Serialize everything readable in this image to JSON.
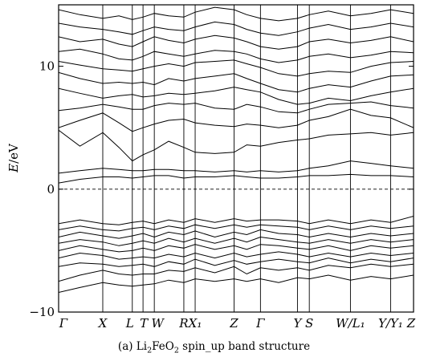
{
  "chart_data": {
    "type": "line",
    "ylabel": "E/eV",
    "ylim": [
      -10,
      15
    ],
    "yticks": [
      -10,
      0,
      10
    ],
    "fermi_level": 0,
    "kpoints": [
      {
        "label": "Γ",
        "x": 0.0
      },
      {
        "label": "X",
        "x": 0.1244
      },
      {
        "label": "L",
        "x": 0.2076
      },
      {
        "label": "T",
        "x": 0.2378
      },
      {
        "label": "W",
        "x": 0.2696
      },
      {
        "label": "R",
        "x": 0.3528
      },
      {
        "label": "X₁",
        "x": 0.3847
      },
      {
        "label": "Z",
        "x": 0.4944
      },
      {
        "label": "Γ",
        "x": 0.5687
      },
      {
        "label": "Y",
        "x": 0.6729
      },
      {
        "label": "S",
        "x": 0.7063
      },
      {
        "label": "W/L₁",
        "x": 0.8222
      },
      {
        "label": "Y/Y₁",
        "x": 0.9353
      },
      {
        "label": "Z",
        "x": 1.0
      }
    ],
    "path_labels": [
      "Γ",
      "X",
      "L",
      "T",
      "W",
      "R",
      "X₁",
      "Z",
      "Γ",
      "Y",
      "S",
      "W/L₁",
      "Y/Y₁",
      "Z"
    ],
    "bands": [
      {
        "x": [
          0,
          0.06,
          0.1244,
          0.17,
          0.2076,
          0.2378,
          0.2696,
          0.31,
          0.3528,
          0.3847,
          0.44,
          0.4944,
          0.53,
          0.5687,
          0.62,
          0.6729,
          0.7063,
          0.76,
          0.8222,
          0.88,
          0.9353,
          1.0
        ],
        "y": [
          -8.4,
          -8.0,
          -7.6,
          -7.8,
          -7.9,
          -7.8,
          -7.7,
          -7.4,
          -7.6,
          -7.3,
          -7.5,
          -7.3,
          -7.5,
          -7.3,
          -7.6,
          -7.2,
          -7.3,
          -7.0,
          -7.4,
          -7.1,
          -7.3,
          -7.0
        ]
      },
      {
        "x": [
          0,
          0.06,
          0.1244,
          0.17,
          0.2076,
          0.2378,
          0.2696,
          0.31,
          0.3528,
          0.3847,
          0.44,
          0.4944,
          0.53,
          0.5687,
          0.62,
          0.6729,
          0.7063,
          0.76,
          0.8222,
          0.88,
          0.9353,
          1.0
        ],
        "y": [
          -7.5,
          -7.0,
          -6.6,
          -6.9,
          -7.0,
          -6.9,
          -6.9,
          -6.6,
          -6.7,
          -6.4,
          -6.8,
          -6.3,
          -6.9,
          -6.4,
          -6.6,
          -6.4,
          -6.6,
          -6.2,
          -6.4,
          -6.1,
          -6.3,
          -6.1
        ]
      },
      {
        "x": [
          0,
          0.06,
          0.1244,
          0.17,
          0.2076,
          0.2378,
          0.2696,
          0.31,
          0.3528,
          0.3847,
          0.44,
          0.4944,
          0.53,
          0.5687,
          0.62,
          0.6729,
          0.7063,
          0.76,
          0.8222,
          0.88,
          0.9353,
          1.0
        ],
        "y": [
          -6.3,
          -6.0,
          -6.1,
          -6.3,
          -6.2,
          -6.1,
          -6.3,
          -5.9,
          -6.1,
          -5.7,
          -6.2,
          -5.8,
          -6.1,
          -5.9,
          -5.7,
          -5.9,
          -6.0,
          -5.6,
          -6.0,
          -5.7,
          -5.9,
          -5.6
        ]
      },
      {
        "x": [
          0,
          0.06,
          0.1244,
          0.17,
          0.2076,
          0.2378,
          0.2696,
          0.31,
          0.3528,
          0.3847,
          0.44,
          0.4944,
          0.53,
          0.5687,
          0.62,
          0.6729,
          0.7063,
          0.76,
          0.8222,
          0.88,
          0.9353,
          1.0
        ],
        "y": [
          -5.6,
          -5.2,
          -5.4,
          -5.7,
          -5.6,
          -5.5,
          -5.6,
          -5.3,
          -5.5,
          -5.2,
          -5.6,
          -5.2,
          -5.5,
          -5.3,
          -5.1,
          -5.3,
          -5.5,
          -5.2,
          -5.5,
          -5.2,
          -5.4,
          -5.2
        ]
      },
      {
        "x": [
          0,
          0.06,
          0.1244,
          0.17,
          0.2076,
          0.2378,
          0.2696,
          0.31,
          0.3528,
          0.3847,
          0.44,
          0.4944,
          0.53,
          0.5687,
          0.62,
          0.6729,
          0.7063,
          0.76,
          0.8222,
          0.88,
          0.9353,
          1.0
        ],
        "y": [
          -5.0,
          -4.6,
          -4.9,
          -5.1,
          -5.0,
          -4.8,
          -5.0,
          -4.6,
          -4.8,
          -4.5,
          -4.9,
          -4.6,
          -4.9,
          -4.5,
          -4.6,
          -4.8,
          -4.9,
          -4.6,
          -5.0,
          -4.6,
          -4.8,
          -4.6
        ]
      },
      {
        "x": [
          0,
          0.06,
          0.1244,
          0.17,
          0.2076,
          0.2378,
          0.2696,
          0.31,
          0.3528,
          0.3847,
          0.44,
          0.4944,
          0.53,
          0.5687,
          0.62,
          0.6729,
          0.7063,
          0.76,
          0.8222,
          0.88,
          0.9353,
          1.0
        ],
        "y": [
          -4.4,
          -4.1,
          -4.3,
          -4.6,
          -4.4,
          -4.2,
          -4.4,
          -4.0,
          -4.3,
          -4.0,
          -4.4,
          -4.0,
          -4.3,
          -3.9,
          -4.1,
          -4.3,
          -4.4,
          -4.1,
          -4.4,
          -4.1,
          -4.3,
          -4.1
        ]
      },
      {
        "x": [
          0,
          0.06,
          0.1244,
          0.17,
          0.2076,
          0.2378,
          0.2696,
          0.31,
          0.3528,
          0.3847,
          0.44,
          0.4944,
          0.53,
          0.5687,
          0.62,
          0.6729,
          0.7063,
          0.76,
          0.8222,
          0.88,
          0.9353,
          1.0
        ],
        "y": [
          -3.9,
          -3.5,
          -3.8,
          -4.0,
          -3.8,
          -3.6,
          -3.9,
          -3.5,
          -3.7,
          -3.4,
          -3.9,
          -3.5,
          -3.7,
          -3.3,
          -3.6,
          -3.7,
          -3.9,
          -3.6,
          -3.9,
          -3.6,
          -3.8,
          -3.6
        ]
      },
      {
        "x": [
          0,
          0.06,
          0.1244,
          0.17,
          0.2076,
          0.2378,
          0.2696,
          0.31,
          0.3528,
          0.3847,
          0.44,
          0.4944,
          0.53,
          0.5687,
          0.62,
          0.6729,
          0.7063,
          0.76,
          0.8222,
          0.88,
          0.9353,
          1.0
        ],
        "y": [
          -3.3,
          -3.0,
          -3.3,
          -3.4,
          -3.2,
          -3.1,
          -3.3,
          -3.0,
          -3.2,
          -2.9,
          -3.2,
          -2.9,
          -3.1,
          -2.9,
          -3.0,
          -3.1,
          -3.3,
          -3.0,
          -3.3,
          -3.0,
          -3.2,
          -3.0
        ]
      },
      {
        "x": [
          0,
          0.06,
          0.1244,
          0.17,
          0.2076,
          0.2378,
          0.2696,
          0.31,
          0.3528,
          0.3847,
          0.44,
          0.4944,
          0.53,
          0.5687,
          0.62,
          0.6729,
          0.7063,
          0.76,
          0.8222,
          0.88,
          0.9353,
          1.0
        ],
        "y": [
          -2.8,
          -2.5,
          -2.8,
          -2.9,
          -2.7,
          -2.6,
          -2.8,
          -2.5,
          -2.7,
          -2.4,
          -2.7,
          -2.4,
          -2.6,
          -2.5,
          -2.5,
          -2.6,
          -2.8,
          -2.5,
          -2.8,
          -2.5,
          -2.7,
          -2.2
        ]
      },
      {
        "x": [
          0,
          0.06,
          0.1244,
          0.17,
          0.2076,
          0.2378,
          0.2696,
          0.31,
          0.3528,
          0.3847,
          0.44,
          0.4944,
          0.53,
          0.5687,
          0.62,
          0.6729,
          0.7063,
          0.76,
          0.8222,
          0.88,
          0.9353,
          1.0
        ],
        "y": [
          0.5,
          0.8,
          1.0,
          1.0,
          0.9,
          1.0,
          1.1,
          1.1,
          0.9,
          1.0,
          1.0,
          1.1,
          1.0,
          0.9,
          0.9,
          1.0,
          1.1,
          1.1,
          1.2,
          1.1,
          1.1,
          1.0
        ]
      },
      {
        "x": [
          0,
          0.06,
          0.1244,
          0.17,
          0.2076,
          0.2378,
          0.2696,
          0.31,
          0.3528,
          0.3847,
          0.44,
          0.4944,
          0.53,
          0.5687,
          0.62,
          0.6729,
          0.7063,
          0.76,
          0.8222,
          0.88,
          0.9353,
          1.0
        ],
        "y": [
          1.3,
          1.5,
          1.7,
          1.6,
          1.5,
          1.5,
          1.6,
          1.6,
          1.5,
          1.5,
          1.4,
          1.5,
          1.4,
          1.5,
          1.4,
          1.5,
          1.7,
          1.9,
          2.3,
          2.1,
          1.9,
          1.7
        ]
      },
      {
        "x": [
          0,
          0.06,
          0.1244,
          0.17,
          0.2076,
          0.2378,
          0.2696,
          0.31,
          0.3528,
          0.3847,
          0.44,
          0.4944,
          0.53,
          0.5687,
          0.62,
          0.6729,
          0.7063,
          0.76,
          0.8222,
          0.88,
          0.9353,
          1.0
        ],
        "y": [
          4.8,
          3.5,
          4.6,
          3.4,
          2.3,
          2.8,
          3.2,
          3.9,
          3.4,
          3.0,
          2.9,
          3.0,
          3.6,
          3.5,
          3.8,
          4.0,
          4.1,
          4.4,
          4.5,
          4.6,
          4.4,
          4.6
        ]
      },
      {
        "x": [
          0,
          0.06,
          0.1244,
          0.17,
          0.2076,
          0.2378,
          0.2696,
          0.31,
          0.3528,
          0.3847,
          0.44,
          0.4944,
          0.53,
          0.5687,
          0.62,
          0.6729,
          0.7063,
          0.76,
          0.8222,
          0.88,
          0.9353,
          1.0
        ],
        "y": [
          5.0,
          5.6,
          6.2,
          5.4,
          4.7,
          5.0,
          5.3,
          5.6,
          5.7,
          5.4,
          5.2,
          5.1,
          5.3,
          5.2,
          5.0,
          5.2,
          5.6,
          5.9,
          6.5,
          6.0,
          5.8,
          5.0
        ]
      },
      {
        "x": [
          0,
          0.06,
          0.1244,
          0.17,
          0.2076,
          0.2378,
          0.2696,
          0.31,
          0.3528,
          0.3847,
          0.44,
          0.4944,
          0.53,
          0.5687,
          0.62,
          0.6729,
          0.7063,
          0.76,
          0.8222,
          0.88,
          0.9353,
          1.0
        ],
        "y": [
          6.4,
          6.6,
          6.9,
          6.7,
          6.5,
          6.5,
          6.8,
          7.0,
          6.9,
          7.0,
          6.6,
          6.5,
          6.9,
          6.7,
          6.3,
          6.2,
          6.5,
          6.9,
          7.0,
          7.1,
          6.8,
          6.6
        ]
      },
      {
        "x": [
          0,
          0.06,
          0.1244,
          0.17,
          0.2076,
          0.2378,
          0.2696,
          0.31,
          0.3528,
          0.3847,
          0.44,
          0.4944,
          0.53,
          0.5687,
          0.62,
          0.6729,
          0.7063,
          0.76,
          0.8222,
          0.88,
          0.9353,
          1.0
        ],
        "y": [
          8.2,
          7.8,
          7.4,
          7.6,
          7.7,
          7.5,
          7.6,
          7.8,
          7.7,
          7.8,
          8.0,
          8.3,
          8.1,
          7.9,
          7.3,
          6.9,
          7.0,
          7.4,
          7.2,
          7.6,
          7.9,
          8.2
        ]
      },
      {
        "x": [
          0,
          0.06,
          0.1244,
          0.17,
          0.2076,
          0.2378,
          0.2696,
          0.31,
          0.3528,
          0.3847,
          0.44,
          0.4944,
          0.53,
          0.5687,
          0.62,
          0.6729,
          0.7063,
          0.76,
          0.8222,
          0.88,
          0.9353,
          1.0
        ],
        "y": [
          9.5,
          9.0,
          8.6,
          8.7,
          8.6,
          8.7,
          8.5,
          9.0,
          8.8,
          9.0,
          9.2,
          9.4,
          9.0,
          8.6,
          8.1,
          7.9,
          8.2,
          8.5,
          8.3,
          8.8,
          9.2,
          9.3
        ]
      },
      {
        "x": [
          0,
          0.06,
          0.1244,
          0.17,
          0.2076,
          0.2378,
          0.2696,
          0.31,
          0.3528,
          0.3847,
          0.44,
          0.4944,
          0.53,
          0.5687,
          0.62,
          0.6729,
          0.7063,
          0.76,
          0.8222,
          0.88,
          0.9353,
          1.0
        ],
        "y": [
          10.4,
          10.1,
          9.8,
          9.7,
          9.6,
          9.8,
          10.0,
          10.2,
          10.0,
          10.3,
          10.4,
          10.5,
          10.2,
          9.9,
          9.4,
          9.2,
          9.4,
          9.6,
          9.5,
          10.0,
          10.3,
          10.4
        ]
      },
      {
        "x": [
          0,
          0.06,
          0.1244,
          0.17,
          0.2076,
          0.2378,
          0.2696,
          0.31,
          0.3528,
          0.3847,
          0.44,
          0.4944,
          0.53,
          0.5687,
          0.62,
          0.6729,
          0.7063,
          0.76,
          0.8222,
          0.88,
          0.9353,
          1.0
        ],
        "y": [
          11.2,
          11.4,
          11.0,
          10.6,
          10.5,
          10.8,
          11.2,
          11.0,
          10.8,
          11.0,
          11.3,
          11.2,
          11.0,
          10.6,
          10.3,
          10.5,
          10.8,
          11.0,
          10.7,
          10.9,
          11.2,
          11.1
        ]
      },
      {
        "x": [
          0,
          0.06,
          0.1244,
          0.17,
          0.2076,
          0.2378,
          0.2696,
          0.31,
          0.3528,
          0.3847,
          0.44,
          0.4944,
          0.53,
          0.5687,
          0.62,
          0.6729,
          0.7063,
          0.76,
          0.8222,
          0.88,
          0.9353,
          1.0
        ],
        "y": [
          12.4,
          12.0,
          12.2,
          11.8,
          11.6,
          12.0,
          12.4,
          12.1,
          11.9,
          12.2,
          12.5,
          12.3,
          12.0,
          11.6,
          11.4,
          11.6,
          12.0,
          12.2,
          11.9,
          12.1,
          12.4,
          12.0
        ]
      },
      {
        "x": [
          0,
          0.06,
          0.1244,
          0.17,
          0.2076,
          0.2378,
          0.2696,
          0.31,
          0.3528,
          0.3847,
          0.44,
          0.4944,
          0.53,
          0.5687,
          0.62,
          0.6729,
          0.7063,
          0.76,
          0.8222,
          0.88,
          0.9353,
          1.0
        ],
        "y": [
          13.5,
          13.2,
          13.0,
          12.8,
          12.6,
          12.9,
          13.2,
          13.0,
          12.9,
          13.2,
          13.6,
          13.4,
          13.0,
          12.7,
          12.5,
          12.8,
          13.1,
          13.4,
          13.0,
          13.2,
          13.5,
          13.2
        ]
      },
      {
        "x": [
          0,
          0.06,
          0.1244,
          0.17,
          0.2076,
          0.2378,
          0.2696,
          0.31,
          0.3528,
          0.3847,
          0.44,
          0.4944,
          0.53,
          0.5687,
          0.62,
          0.6729,
          0.7063,
          0.76,
          0.8222,
          0.88,
          0.9353,
          1.0
        ],
        "y": [
          14.6,
          14.2,
          13.9,
          14.1,
          13.8,
          14.0,
          14.3,
          14.1,
          14.0,
          14.4,
          14.8,
          14.6,
          14.2,
          13.9,
          13.7,
          13.9,
          14.2,
          14.5,
          14.1,
          14.3,
          14.6,
          14.3
        ]
      }
    ]
  }
}
